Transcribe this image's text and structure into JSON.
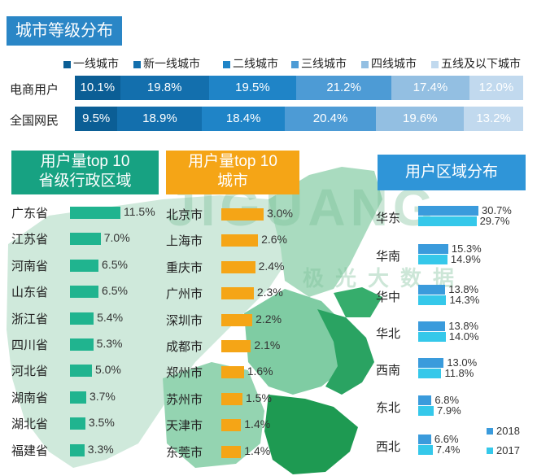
{
  "colors": {
    "title_bg": "#2a86c6",
    "tiers": [
      "#0b5e95",
      "#136fad",
      "#1f84c7",
      "#4d9bd5",
      "#93bfe2",
      "#c1d9ee"
    ],
    "province_bar": "#20b48f",
    "province_head": "#17a282",
    "city_bar": "#f5a516",
    "city_head": "#f5a516",
    "region_head": "#2f95d8",
    "region_2018": "#3a9bdc",
    "region_2017": "#35c8ea",
    "map_light": "#bfe3cf",
    "map_mid": "#6cc596",
    "map_dark": "#1f9a55"
  },
  "title": "城市等级分布",
  "watermark": {
    "brand": "JIGUANG",
    "cn": "极光大数据"
  },
  "chart_data": [
    {
      "type": "bar",
      "orientation": "horizontal",
      "stacked": true,
      "normalized": true,
      "legend_position": "top",
      "categories": [
        "电商用户",
        "全国网民"
      ],
      "series": [
        {
          "name": "一线城市",
          "values": [
            10.1,
            9.5
          ],
          "labels": [
            "10.1%",
            "9.5%"
          ]
        },
        {
          "name": "新一线城市",
          "values": [
            19.8,
            18.9
          ],
          "labels": [
            "19.8%",
            "18.9%"
          ]
        },
        {
          "name": "二线城市",
          "values": [
            19.5,
            18.4
          ],
          "labels": [
            "19.5%",
            "18.4%"
          ]
        },
        {
          "name": "三线城市",
          "values": [
            21.2,
            20.4
          ],
          "labels": [
            "21.2%",
            "20.4%"
          ]
        },
        {
          "name": "四线城市",
          "values": [
            17.4,
            19.6
          ],
          "labels": [
            "17.4%",
            "19.6%"
          ]
        },
        {
          "name": "五线及以下城市",
          "values": [
            12.0,
            13.2
          ],
          "labels": [
            "12.0%",
            "13.2%"
          ]
        }
      ]
    },
    {
      "type": "bar",
      "orientation": "horizontal",
      "title": "用户量top 10\n省级行政区域",
      "title_lines": [
        "用户量top 10",
        "省级行政区域"
      ],
      "categories": [
        "广东省",
        "江苏省",
        "河南省",
        "山东省",
        "浙江省",
        "四川省",
        "河北省",
        "湖南省",
        "湖北省",
        "福建省"
      ],
      "values": [
        11.5,
        7.0,
        6.5,
        6.5,
        5.4,
        5.3,
        5.0,
        3.7,
        3.5,
        3.3
      ],
      "labels": [
        "11.5%",
        "7.0%",
        "6.5%",
        "6.5%",
        "5.4%",
        "5.3%",
        "5.0%",
        "3.7%",
        "3.5%",
        "3.3%"
      ],
      "xlim": [
        0,
        11.5
      ]
    },
    {
      "type": "bar",
      "orientation": "horizontal",
      "title": "用户量top 10\n城市",
      "title_lines": [
        "用户量top 10",
        "城市"
      ],
      "categories": [
        "北京市",
        "上海市",
        "重庆市",
        "广州市",
        "深圳市",
        "成都市",
        "郑州市",
        "苏州市",
        "天津市",
        "东莞市"
      ],
      "values": [
        3.0,
        2.6,
        2.4,
        2.3,
        2.2,
        2.1,
        1.6,
        1.5,
        1.4,
        1.4
      ],
      "labels": [
        "3.0%",
        "2.6%",
        "2.4%",
        "2.3%",
        "2.2%",
        "2.1%",
        "1.6%",
        "1.5%",
        "1.4%",
        "1.4%"
      ],
      "xlim": [
        0,
        3.0
      ]
    },
    {
      "type": "bar",
      "orientation": "horizontal",
      "title": "用户区域分布",
      "legend_position": "bottom-right",
      "categories": [
        "华东",
        "华南",
        "华中",
        "华北",
        "西南",
        "东北",
        "西北"
      ],
      "series": [
        {
          "name": "2018",
          "values": [
            30.7,
            15.3,
            13.8,
            13.8,
            13.0,
            6.8,
            6.6
          ],
          "labels": [
            "30.7%",
            "15.3%",
            "13.8%",
            "13.8%",
            "13.0%",
            "6.8%",
            "6.6%"
          ]
        },
        {
          "name": "2017",
          "values": [
            29.7,
            14.9,
            14.3,
            14.0,
            11.8,
            7.9,
            7.4
          ],
          "labels": [
            "29.7%",
            "14.9%",
            "14.3%",
            "14.0%",
            "11.8%",
            "7.9%",
            "7.4%"
          ]
        }
      ],
      "xlim": [
        0,
        30.7
      ]
    }
  ]
}
